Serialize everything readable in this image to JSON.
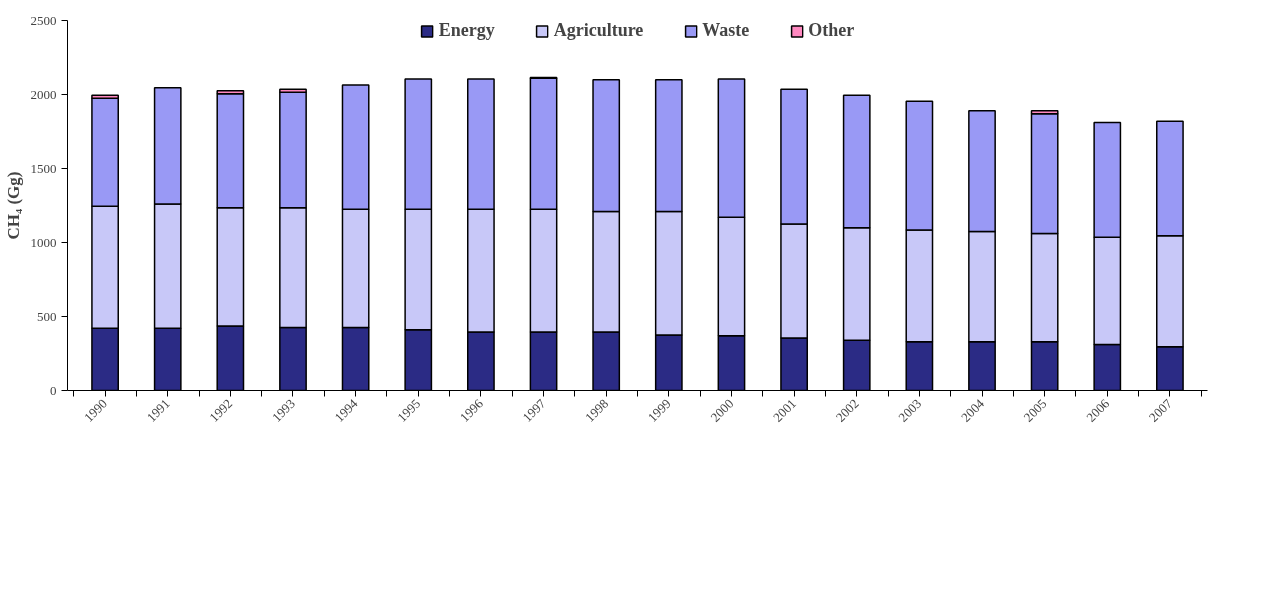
{
  "chart_data": {
    "type": "bar",
    "stacked": true,
    "ylabel": "CH₄ (Gg)",
    "categories": [
      "1990",
      "1991",
      "1992",
      "1993",
      "1994",
      "1995",
      "1996",
      "1997",
      "1998",
      "1999",
      "2000",
      "2001",
      "2002",
      "2003",
      "2004",
      "2005",
      "2006",
      "2007"
    ],
    "series": [
      {
        "name": "Energy",
        "color": "#2b2b85",
        "values": [
          420,
          420,
          435,
          425,
          425,
          410,
          395,
          395,
          395,
          375,
          370,
          355,
          340,
          330,
          330,
          330,
          310,
          295
        ]
      },
      {
        "name": "Agriculture",
        "color": "#c8c8f8",
        "values": [
          825,
          840,
          800,
          810,
          800,
          815,
          830,
          830,
          815,
          835,
          800,
          770,
          760,
          755,
          745,
          730,
          725,
          750
        ]
      },
      {
        "name": "Waste",
        "color": "#9999f5",
        "values": [
          730,
          785,
          770,
          780,
          840,
          880,
          880,
          885,
          890,
          890,
          935,
          910,
          895,
          870,
          815,
          810,
          775,
          775
        ]
      },
      {
        "name": "Other",
        "color": "#ff88c0",
        "values": [
          20,
          null,
          20,
          20,
          null,
          null,
          null,
          5,
          null,
          null,
          null,
          null,
          null,
          null,
          null,
          20,
          null,
          null
        ]
      }
    ],
    "ylim": [
      0,
      2500
    ],
    "yticks": [
      0,
      500,
      1000,
      1500,
      2000,
      2500
    ],
    "grid": false,
    "legend": "top"
  }
}
